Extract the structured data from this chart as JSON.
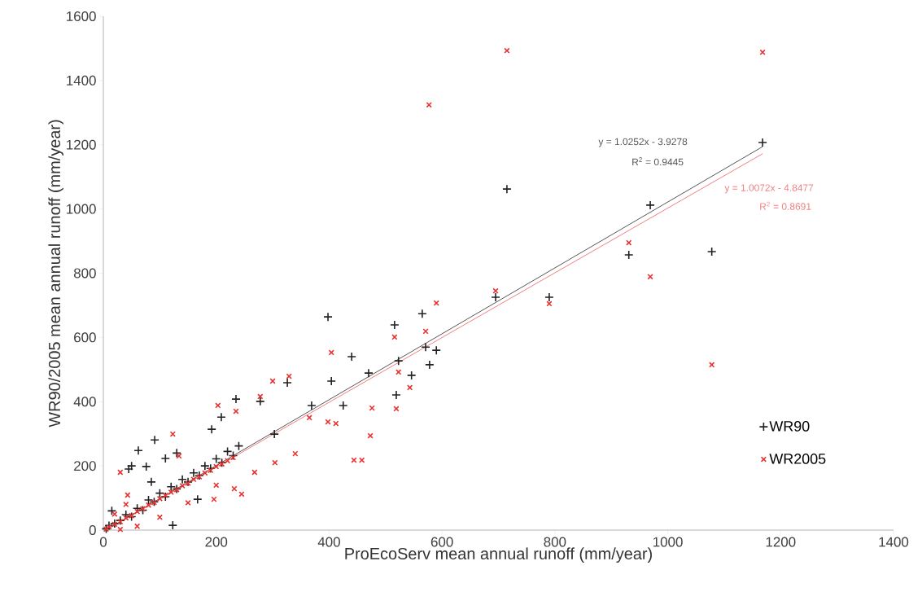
{
  "chart_data": {
    "type": "scatter",
    "xlabel": "ProEcoServ mean annual runoff (mm/year)",
    "ylabel": "WR90/2005 mean annual runoff (mm/year)",
    "xlim": [
      0,
      1400
    ],
    "ylim": [
      0,
      1600
    ],
    "xticks": [
      0,
      200,
      400,
      600,
      800,
      1000,
      1200,
      1400
    ],
    "yticks": [
      0,
      200,
      400,
      600,
      800,
      1000,
      1200,
      1400,
      1600
    ],
    "grid": false,
    "legend": "bottom right",
    "series": [
      {
        "name": "WR90",
        "marker": "plus",
        "color": "#222222",
        "x": [
          1168,
          715,
          969,
          931,
          1078,
          695,
          790,
          398,
          565,
          516,
          571,
          590,
          578,
          523,
          546,
          519,
          440,
          404,
          470,
          425,
          369,
          326,
          278,
          235,
          209,
          303,
          192,
          167,
          123,
          91,
          62,
          50,
          110,
          76,
          5,
          10,
          20,
          30,
          40,
          50,
          60,
          70,
          80,
          90,
          100,
          110,
          120,
          130,
          140,
          150,
          160,
          170,
          180,
          190,
          200,
          210,
          220,
          230,
          240,
          45,
          85,
          130,
          15
        ],
        "values": [
          1207,
          1062,
          1012,
          857,
          867,
          725,
          725,
          664,
          674,
          639,
          570,
          560,
          515,
          527,
          482,
          421,
          540,
          464,
          489,
          388,
          388,
          459,
          401,
          408,
          352,
          299,
          314,
          96,
          15,
          281,
          248,
          200,
          223,
          198,
          4,
          14,
          20,
          30,
          48,
          42,
          68,
          62,
          94,
          88,
          115,
          104,
          135,
          128,
          158,
          150,
          178,
          170,
          200,
          192,
          222,
          210,
          245,
          232,
          262,
          190,
          150,
          240,
          60
        ]
      },
      {
        "name": "WR2005",
        "marker": "cross",
        "color": "#e8312f",
        "x": [
          715,
          1168,
          577,
          931,
          969,
          1078,
          695,
          790,
          590,
          571,
          516,
          523,
          543,
          519,
          404,
          476,
          458,
          473,
          444,
          340,
          398,
          329,
          300,
          278,
          235,
          203,
          365,
          412,
          304,
          232,
          245,
          196,
          123,
          30,
          43,
          134,
          268,
          5,
          10,
          20,
          30,
          40,
          50,
          60,
          70,
          80,
          90,
          100,
          110,
          120,
          130,
          140,
          150,
          160,
          170,
          180,
          190,
          200,
          210,
          220,
          230,
          60,
          100,
          150,
          200,
          30,
          20,
          40
        ],
        "values": [
          1493,
          1488,
          1324,
          895,
          789,
          515,
          745,
          705,
          707,
          619,
          601,
          492,
          444,
          378,
          553,
          380,
          218,
          294,
          218,
          238,
          337,
          479,
          464,
          416,
          370,
          388,
          350,
          332,
          210,
          129,
          112,
          96,
          299,
          180,
          109,
          231,
          180,
          3,
          10,
          18,
          26,
          38,
          45,
          58,
          66,
          78,
          86,
          98,
          108,
          118,
          126,
          138,
          146,
          158,
          166,
          178,
          186,
          198,
          206,
          216,
          226,
          12,
          40,
          85,
          140,
          2,
          50,
          80
        ]
      },
      {
        "type": "line",
        "color": "#555555",
        "x": [
          10,
          1168
        ],
        "values": [
          6,
          1194
        ]
      },
      {
        "type": "line",
        "color": "#f08080",
        "x": [
          10,
          1168
        ],
        "values": [
          5,
          1172
        ]
      }
    ],
    "annotations": [
      "y = 1.0252x - 3.9278",
      "R$^{2}$ = 0.9445",
      "y = 1.0072x - 4.8477",
      "R$^{2}$ = 0.8691"
    ]
  }
}
